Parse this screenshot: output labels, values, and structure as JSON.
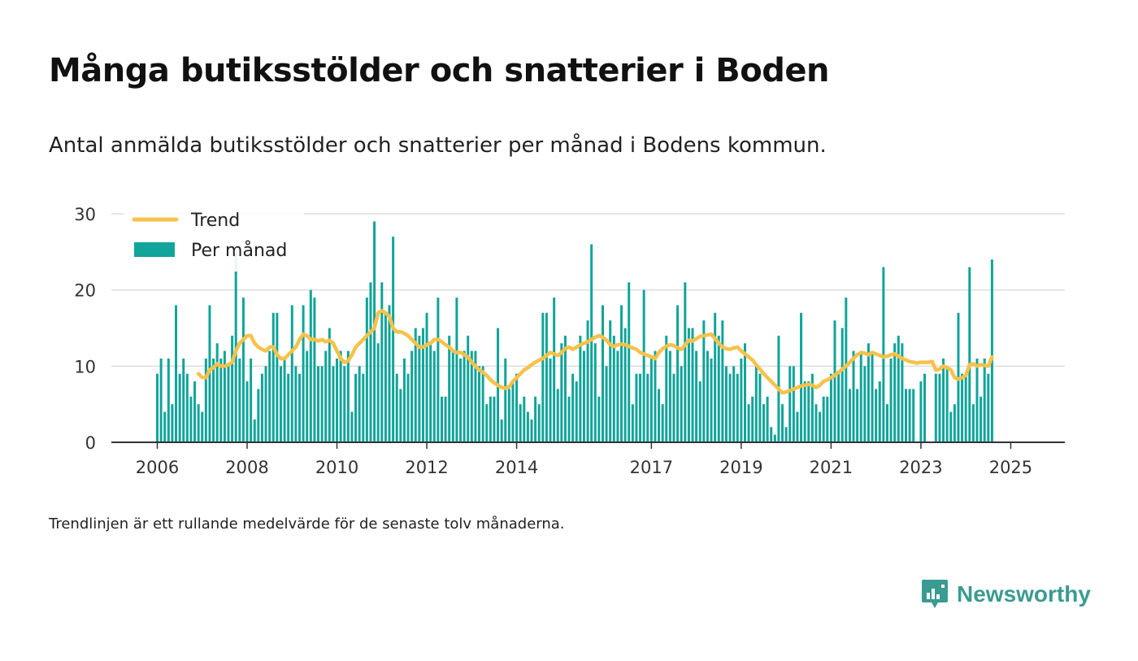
{
  "title": "Många butiksstölder och snatterier i Boden",
  "subtitle": "Antal anmälda butiksstölder och snatterier per månad i Bodens kommun.",
  "note": "Trendlinjen är ett rullande medelvärde för de senaste tolv månaderna.",
  "brand": {
    "name": "Newsworthy",
    "icon": "newsworthy-logo-icon"
  },
  "colors": {
    "bars": "#10a49a",
    "trend": "#f7c24a",
    "grid": "#dddddd",
    "axis": "#333333",
    "brand": "#3a9b92"
  },
  "chart_data": {
    "type": "bar",
    "title": "Många butiksstölder och snatterier i Boden",
    "subtitle": "Antal anmälda butiksstölder och snatterier per månad i Bodens kommun.",
    "start": "2006-01",
    "ylim": [
      0,
      30
    ],
    "y_ticks": [
      0,
      10,
      20,
      30
    ],
    "x_ticks": [
      "2006",
      "2008",
      "2010",
      "2012",
      "2014",
      "2017",
      "2019",
      "2021",
      "2023",
      "2025"
    ],
    "grid": true,
    "legend": {
      "placement": "top-left",
      "entries": [
        "Trend",
        "Per månad"
      ]
    },
    "series": [
      {
        "name": "Per månad",
        "type": "bar",
        "values": [
          9,
          11,
          4,
          11,
          5,
          18,
          9,
          11,
          9,
          6,
          8,
          5,
          4,
          11,
          18,
          11,
          13,
          11,
          12,
          10,
          14,
          25,
          11,
          19,
          8,
          11,
          3,
          7,
          9,
          10,
          12,
          17,
          17,
          10,
          11,
          9,
          18,
          10,
          9,
          18,
          12,
          20,
          19,
          10,
          10,
          12,
          15,
          10,
          11,
          12,
          10,
          12,
          4,
          9,
          10,
          9,
          19,
          21,
          29,
          13,
          21,
          17,
          18,
          27,
          9,
          7,
          11,
          9,
          12,
          15,
          14,
          15,
          17,
          13,
          12,
          19,
          6,
          6,
          14,
          12,
          19,
          11,
          12,
          14,
          12,
          12,
          10,
          10,
          5,
          6,
          6,
          15,
          3,
          11,
          7,
          8,
          9,
          5,
          6,
          4,
          3,
          6,
          5,
          17,
          17,
          11,
          19,
          7,
          13,
          14,
          6,
          9,
          8,
          14,
          12,
          16,
          26,
          13,
          6,
          18,
          10,
          16,
          14,
          12,
          18,
          15,
          21,
          5,
          9,
          9,
          20,
          9,
          11,
          12,
          7,
          5,
          14,
          12,
          9,
          18,
          10,
          21,
          15,
          15,
          12,
          8,
          16,
          12,
          11,
          17,
          14,
          16,
          10,
          9,
          10,
          9,
          11,
          13,
          5,
          6,
          10,
          9,
          5,
          6,
          2,
          1,
          14,
          5,
          2,
          10,
          10,
          4,
          17,
          8,
          8,
          9,
          5,
          4,
          6,
          6,
          9,
          16,
          9,
          15,
          19,
          7,
          12,
          7,
          12,
          10,
          13,
          12,
          7,
          8,
          23,
          5,
          11,
          13,
          14,
          13,
          7,
          7,
          7,
          0,
          8,
          9,
          0,
          0,
          9,
          9,
          11,
          10,
          4,
          5,
          17,
          9,
          9,
          23,
          5,
          11,
          6,
          11,
          9,
          24
        ]
      },
      {
        "name": "Trend",
        "type": "line",
        "start_index": 11,
        "values": [
          9,
          8.5,
          8.5,
          9.5,
          9.8,
          10.3,
          10,
          10,
          10.2,
          10.5,
          12,
          13,
          13.5,
          14,
          14,
          13,
          12.5,
          12.2,
          12,
          12.5,
          12.5,
          11.5,
          11,
          11,
          11.5,
          12,
          12.5,
          13.5,
          14.2,
          14,
          13.5,
          13.5,
          13.3,
          13.5,
          13.2,
          13.4,
          13,
          12,
          11,
          10.5,
          10.7,
          11.5,
          12.5,
          13,
          13.5,
          14,
          14.5,
          15,
          17,
          17.3,
          17,
          16.5,
          15,
          14.5,
          14.5,
          14.3,
          14,
          13.5,
          13,
          12.5,
          12.5,
          12.8,
          13,
          13.5,
          13.5,
          13.2,
          12.8,
          12.5,
          12,
          11.8,
          11.8,
          11.5,
          11.2,
          10.5,
          10,
          9.5,
          9.2,
          8.8,
          8.2,
          7.8,
          7.5,
          7.2,
          7.1,
          7.3,
          8,
          8.5,
          9,
          9.5,
          9.8,
          10.2,
          10.5,
          10.8,
          11,
          11.4,
          11.8,
          11.6,
          11.4,
          11.8,
          12.3,
          12.5,
          12.2,
          12.5,
          12.8,
          13,
          13.2,
          13.5,
          13.8,
          14,
          13.8,
          13.4,
          12.8,
          12.6,
          12.8,
          12.9,
          12.8,
          12.6,
          12.4,
          12.2,
          11.8,
          11.6,
          11.4,
          11.2,
          11,
          11.8,
          12.3,
          12.6,
          12.8,
          12.7,
          12.4,
          12.2,
          12.8,
          13.4,
          13.3,
          13.6,
          13.9,
          14,
          14.1,
          14.2,
          13.6,
          13,
          12.5,
          12.3,
          12.2,
          12.4,
          12.5,
          12,
          11.6,
          11.2,
          10.8,
          10.2,
          9.6,
          9,
          8.5,
          8,
          7.5,
          7,
          6.5,
          6.6,
          6.8,
          7,
          7.2,
          7.4,
          7.5,
          7.6,
          7.5,
          7.2,
          7.5,
          8,
          8.2,
          8.5,
          8.8,
          9.2,
          9.6,
          10,
          10.5,
          11,
          11.5,
          11.8,
          11.7,
          11.5,
          11.8,
          11.6,
          11.4,
          11.2,
          11.3,
          11.5,
          11.6,
          11.3,
          11,
          10.8,
          10.6,
          10.5,
          10.4,
          10.5,
          10.5,
          10.5,
          10.6,
          9.5,
          9.6,
          10,
          9.8,
          9.5,
          8.5,
          8.3,
          8.5,
          8.8,
          10.2,
          10.3,
          10,
          10.2,
          10.1,
          10,
          11.2
        ]
      }
    ]
  }
}
